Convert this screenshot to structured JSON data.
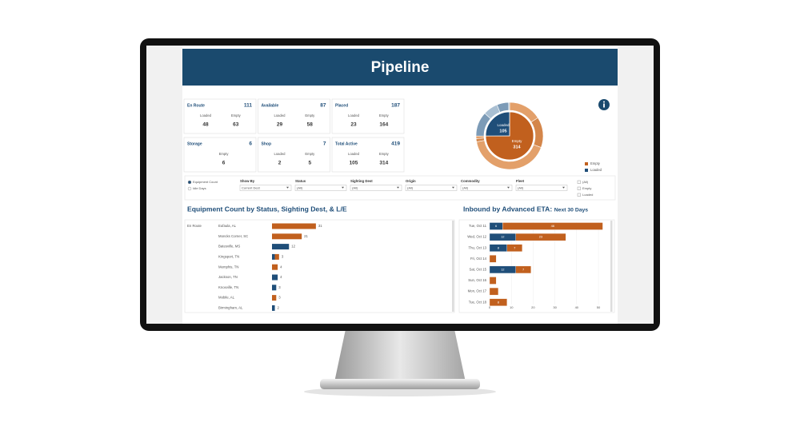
{
  "header": {
    "title": "Pipeline"
  },
  "kpis": [
    {
      "label": "En Route",
      "total": 111,
      "loaded_label": "Loaded",
      "loaded": 48,
      "empty_label": "Empty",
      "empty": 63
    },
    {
      "label": "Available",
      "total": 87,
      "loaded_label": "Loaded",
      "loaded": 29,
      "empty_label": "Empty",
      "empty": 58
    },
    {
      "label": "Placed",
      "total": 187,
      "loaded_label": "Loaded",
      "loaded": 23,
      "empty_label": "Empty",
      "empty": 164
    },
    {
      "label": "Storage",
      "total": 6,
      "empty_label": "Empty",
      "empty": 6
    },
    {
      "label": "Shop",
      "total": 7,
      "loaded_label": "Loaded",
      "loaded": 2,
      "empty_label": "Empty",
      "empty": 5
    },
    {
      "label": "Total Active",
      "total": 419,
      "loaded_label": "Loaded",
      "loaded": 105,
      "empty_label": "Empty",
      "empty": 314
    }
  ],
  "filters": {
    "radios": [
      "Equipment Count",
      "Idle Days"
    ],
    "dropdowns": [
      {
        "label": "Show By",
        "value": "Current Dest"
      },
      {
        "label": "Status",
        "value": "(All)"
      },
      {
        "label": "Sighting Dest",
        "value": "(All)"
      },
      {
        "label": "Origin",
        "value": "(All)"
      },
      {
        "label": "Commodity",
        "value": "(All)"
      },
      {
        "label": "Fleet",
        "value": "(All)"
      }
    ],
    "checkboxes": [
      "(All)",
      "Empty",
      "Loaded"
    ]
  },
  "chart_data": [
    {
      "type": "pie",
      "categories": [
        "Loaded",
        "Empty"
      ],
      "values": [
        105,
        314
      ],
      "colors": [
        "#1f4e79",
        "#c1601e"
      ]
    },
    {
      "type": "hbar",
      "title": "Equipment Count by Status, Sighting Dest, & L/E",
      "group": "En Route",
      "categories": [
        "Eufaula, AL",
        "Moncks Corner, SC",
        "Batesville, MS",
        "Kingsport, TN",
        "Memphis, TN",
        "Jackson, TN",
        "Knoxville, TN",
        "Mobile, AL",
        "Birmingham, AL"
      ],
      "series": [
        {
          "color": "#1f4e79",
          "values": [
            0,
            0,
            12,
            2,
            0,
            4,
            3,
            0,
            2
          ]
        },
        {
          "color": "#c1601e",
          "values": [
            31,
            21,
            0,
            3,
            4,
            0,
            0,
            3,
            0
          ]
        }
      ]
    },
    {
      "type": "stacked-hbar",
      "title": "Inbound by Advanced ETA:",
      "subtitle": "Next 30 Days",
      "categories": [
        "Tue, Oct 11",
        "Wed, Oct 12",
        "Thu, Oct 13",
        "Fri, Oct 14",
        "Sat, Oct 15",
        "Sun, Oct 16",
        "Mon, Oct 17",
        "Tue, Oct 18"
      ],
      "series": [
        {
          "color": "#1f4e79",
          "values": [
            6,
            12,
            8,
            0,
            12,
            0,
            0,
            0
          ]
        },
        {
          "color": "#c1601e",
          "values": [
            46,
            23,
            7,
            3,
            7,
            3,
            4,
            8
          ]
        }
      ],
      "xlim": [
        0,
        55
      ],
      "xticks": [
        0,
        10,
        20,
        30,
        40,
        50
      ],
      "grid": true
    }
  ]
}
